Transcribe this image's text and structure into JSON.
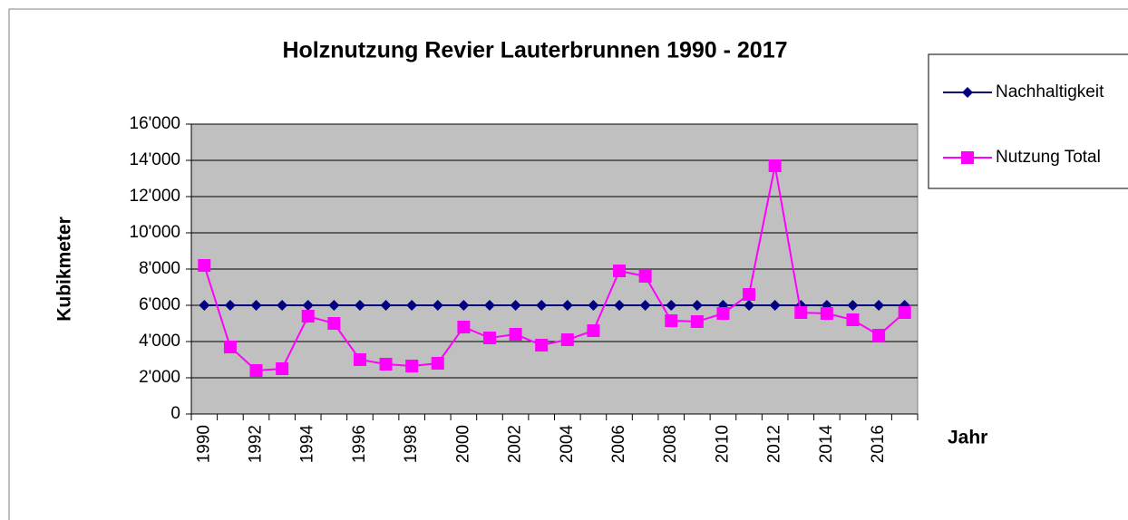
{
  "chart_data": {
    "type": "line",
    "title": "Holznutzung Revier Lauterbrunnen 1990 - 2017",
    "x_label": "Jahr",
    "y_label": "Kubikmeter",
    "categories": [
      "1990",
      null,
      "1992",
      null,
      "1994",
      null,
      "1996",
      null,
      "1998",
      null,
      "2000",
      null,
      "2002",
      null,
      "2004",
      null,
      "2006",
      null,
      "2008",
      null,
      "2010",
      null,
      "2012",
      null,
      "2014",
      null,
      "2016",
      null
    ],
    "series": [
      {
        "name": "Nachhaltigkeit",
        "color": "#000080",
        "marker": "diamond",
        "values": [
          6000,
          6000,
          6000,
          6000,
          6000,
          6000,
          6000,
          6000,
          6000,
          6000,
          6000,
          6000,
          6000,
          6000,
          6000,
          6000,
          6000,
          6000,
          6000,
          6000,
          6000,
          6000,
          6000,
          6000,
          6000,
          6000,
          6000,
          6000
        ]
      },
      {
        "name": "Nutzung Total",
        "color": "#ff00ff",
        "marker": "square",
        "values": [
          8200,
          3700,
          2400,
          2500,
          5400,
          5000,
          3000,
          2750,
          2650,
          2800,
          4800,
          4200,
          4400,
          3800,
          4100,
          4600,
          7900,
          7600,
          5150,
          5100,
          5550,
          6600,
          13700,
          5600,
          5550,
          5200,
          4350,
          5600
        ]
      }
    ],
    "ylim": [
      0,
      16000
    ],
    "yticks": [
      0,
      {
        "value": 2000,
        "label": "2'000"
      },
      {
        "value": 4000,
        "label": "4'000"
      },
      {
        "value": 6000,
        "label": "6'000"
      },
      {
        "value": 8000,
        "label": "8'000"
      },
      {
        "value": 10000,
        "label": "10'000"
      },
      {
        "value": 12000,
        "label": "12'000"
      },
      {
        "value": 14000,
        "label": "14'000"
      },
      {
        "value": 16000,
        "label": "16'000"
      }
    ],
    "grid": true,
    "legend": "right"
  }
}
